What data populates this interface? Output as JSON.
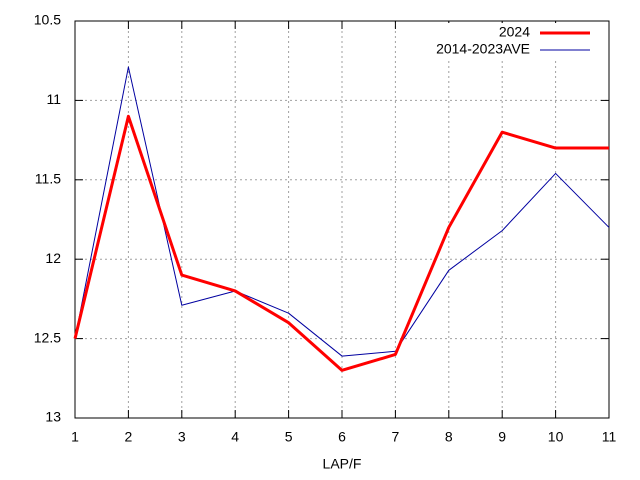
{
  "chart_data": {
    "type": "line",
    "x": [
      1,
      2,
      3,
      4,
      5,
      6,
      7,
      8,
      9,
      10,
      11
    ],
    "series": [
      {
        "name": "2024",
        "color": "#ff0000",
        "line_width": 3,
        "values": [
          12.5,
          11.1,
          12.1,
          12.2,
          12.4,
          12.7,
          12.6,
          11.8,
          11.2,
          11.3,
          11.3
        ]
      },
      {
        "name": "2014-2023AVE",
        "color": "#0000a0",
        "line_width": 1,
        "values": [
          12.5,
          10.79,
          12.29,
          12.2,
          12.34,
          12.61,
          12.58,
          12.07,
          11.82,
          11.46,
          11.8
        ]
      }
    ],
    "xlabel": "LAP/F",
    "xlim": [
      1,
      11
    ],
    "xticks": [
      1,
      2,
      3,
      4,
      5,
      6,
      7,
      8,
      9,
      10,
      11
    ],
    "ylim": [
      13,
      10.5
    ],
    "yticks": [
      10.5,
      11,
      11.5,
      12,
      12.5,
      13
    ],
    "grid": true,
    "legend": "top-right"
  }
}
